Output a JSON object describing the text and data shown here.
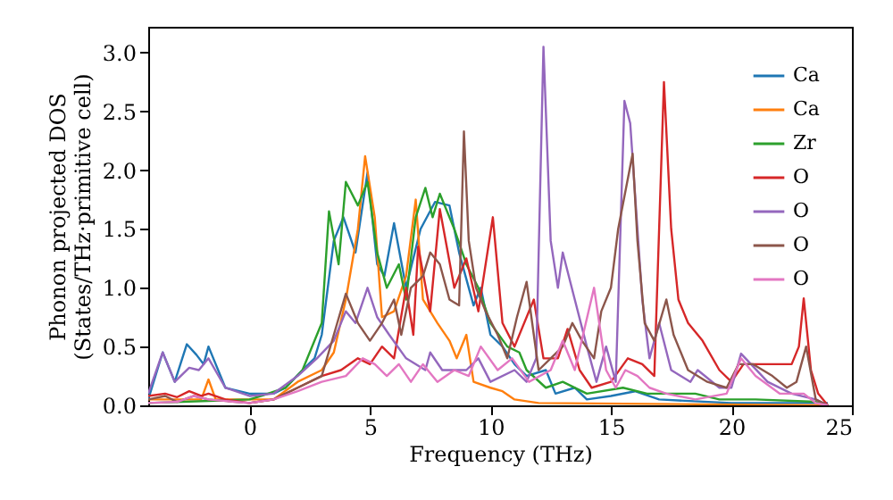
{
  "chart_data": {
    "type": "line",
    "xlabel": "Frequency (THz)",
    "ylabel": "Phonon projected DOS\n(States/THz·primitive cell)",
    "xlim": [
      -4.2,
      25
    ],
    "ylim": [
      0,
      3.22
    ],
    "xticks": [
      0,
      5,
      10,
      15,
      20,
      25
    ],
    "yticks": [
      {
        "value": 0,
        "label": "0.0"
      },
      {
        "value": 0.5,
        "label": "0.5"
      },
      {
        "value": 1,
        "label": "1.0"
      },
      {
        "value": 1.5,
        "label": "1.5"
      },
      {
        "value": 2,
        "label": "2.0"
      },
      {
        "value": 2.5,
        "label": "2.5"
      },
      {
        "value": 3,
        "label": "3.0"
      }
    ],
    "grid": false,
    "legend": "top right",
    "marker": "none",
    "line_style": "solid",
    "series": [
      {
        "name": "Ca",
        "color": "#1f77b4",
        "x": [
          -4.2,
          -3.6,
          -3.1,
          -2.6,
          -2.2,
          -1.9,
          -1.7,
          -1.0,
          0,
          1,
          1.5,
          2.2,
          2.7,
          3.0,
          3.5,
          3.9,
          4.4,
          4.9,
          5.3,
          5.6,
          6.0,
          6.5,
          7.1,
          7.7,
          8.3,
          8.7,
          9.3,
          9.6,
          10.0,
          10.5,
          11.0,
          11.5,
          12.3,
          12.7,
          13.5,
          14.0,
          15.0,
          16.0,
          17.0,
          20.0,
          24.0
        ],
        "values": [
          0.05,
          0.45,
          0.2,
          0.52,
          0.43,
          0.35,
          0.5,
          0.15,
          0.1,
          0.1,
          0.15,
          0.3,
          0.4,
          0.6,
          1.4,
          1.6,
          1.3,
          1.98,
          1.2,
          1.1,
          1.55,
          1.0,
          1.5,
          1.73,
          1.7,
          1.3,
          0.85,
          1.0,
          0.6,
          0.5,
          0.35,
          0.25,
          0.3,
          0.1,
          0.15,
          0.05,
          0.08,
          0.12,
          0.05,
          0.02,
          0.02
        ]
      },
      {
        "name": "Ca",
        "color": "#ff7f0e",
        "x": [
          -4.2,
          -2.0,
          -1.7,
          -1.4,
          0,
          1,
          2,
          3,
          3.5,
          4.0,
          4.5,
          4.8,
          5.2,
          5.5,
          6.0,
          6.5,
          6.9,
          7.2,
          7.8,
          8.3,
          8.6,
          9.0,
          9.3,
          10.0,
          10.5,
          11.0,
          12.0,
          24.0
        ],
        "values": [
          0.05,
          0.05,
          0.22,
          0.05,
          0.05,
          0.05,
          0.2,
          0.3,
          0.45,
          0.9,
          1.5,
          2.12,
          1.6,
          0.75,
          0.8,
          1.1,
          1.75,
          0.9,
          0.7,
          0.55,
          0.4,
          0.6,
          0.2,
          0.15,
          0.12,
          0.05,
          0.02,
          0.0
        ]
      },
      {
        "name": "Zr",
        "color": "#2ca02c",
        "x": [
          -4.2,
          0,
          0.5,
          1.5,
          2.2,
          3.0,
          3.3,
          3.7,
          4.0,
          4.5,
          4.9,
          5.3,
          5.7,
          6.2,
          6.5,
          6.9,
          7.3,
          7.6,
          7.9,
          8.5,
          9.0,
          9.5,
          10.0,
          10.7,
          11.2,
          11.5,
          12.3,
          13.0,
          14.0,
          15.5,
          16.5,
          17.3,
          18.5,
          19.5,
          21.0,
          23.5,
          24.0
        ],
        "values": [
          0.02,
          0.05,
          0.08,
          0.15,
          0.3,
          0.7,
          1.65,
          1.2,
          1.9,
          1.7,
          1.9,
          1.3,
          1.0,
          1.2,
          0.9,
          1.6,
          1.85,
          1.6,
          1.8,
          1.5,
          1.2,
          1.0,
          0.7,
          0.5,
          0.45,
          0.3,
          0.15,
          0.2,
          0.1,
          0.15,
          0.1,
          0.1,
          0.1,
          0.05,
          0.05,
          0.03,
          0.0
        ]
      },
      {
        "name": "O",
        "color": "#d62728",
        "x": [
          -4.2,
          -3.5,
          -3.0,
          -2.5,
          -2.0,
          -1.7,
          -1.0,
          0,
          1,
          2,
          3,
          3.8,
          4.5,
          5.0,
          5.5,
          6.0,
          6.5,
          6.8,
          7.0,
          7.5,
          7.9,
          8.5,
          9.0,
          9.5,
          10.1,
          10.5,
          11.0,
          11.8,
          12.2,
          12.8,
          13.2,
          13.7,
          14.2,
          15.0,
          15.7,
          16.3,
          16.8,
          17.0,
          17.2,
          17.5,
          17.8,
          18.2,
          18.8,
          19.5,
          20.0,
          20.5,
          21.5,
          22.5,
          22.8,
          23.0,
          23.3,
          23.6,
          24.0
        ],
        "values": [
          0.08,
          0.1,
          0.07,
          0.12,
          0.08,
          0.1,
          0.05,
          0.02,
          0.05,
          0.15,
          0.25,
          0.3,
          0.4,
          0.35,
          0.5,
          0.4,
          1.0,
          0.6,
          1.35,
          0.8,
          1.67,
          1.0,
          1.25,
          0.8,
          1.6,
          0.7,
          0.5,
          0.9,
          0.4,
          0.4,
          0.65,
          0.3,
          0.15,
          0.2,
          0.4,
          0.35,
          0.25,
          1.5,
          2.75,
          1.5,
          0.9,
          0.7,
          0.55,
          0.3,
          0.2,
          0.35,
          0.35,
          0.35,
          0.5,
          0.91,
          0.3,
          0.1,
          0.0
        ]
      },
      {
        "name": "O",
        "color": "#9467bd",
        "x": [
          -4.2,
          -3.6,
          -3.1,
          -2.5,
          -2.1,
          -1.7,
          -1.0,
          0,
          1,
          2,
          2.8,
          3.5,
          4.0,
          4.4,
          4.9,
          5.3,
          5.8,
          6.5,
          7.3,
          7.5,
          8.0,
          9.0,
          9.5,
          10.0,
          11.0,
          11.5,
          11.9,
          12.2,
          12.5,
          12.8,
          13.0,
          13.5,
          14.0,
          14.4,
          14.8,
          15.2,
          15.56,
          15.8,
          16.3,
          16.6,
          17.0,
          17.5,
          18.3,
          18.6,
          19.5,
          20.0,
          20.4,
          21.5,
          22.5,
          23.5,
          24.0
        ],
        "values": [
          0.1,
          0.45,
          0.2,
          0.32,
          0.3,
          0.4,
          0.15,
          0.08,
          0.1,
          0.25,
          0.4,
          0.55,
          0.8,
          0.7,
          1.0,
          0.75,
          0.6,
          0.4,
          0.3,
          0.45,
          0.3,
          0.3,
          0.4,
          0.2,
          0.3,
          0.2,
          0.4,
          3.05,
          1.4,
          1.0,
          1.3,
          0.9,
          0.5,
          0.2,
          0.5,
          0.2,
          2.59,
          2.4,
          0.9,
          0.4,
          0.7,
          0.3,
          0.2,
          0.3,
          0.15,
          0.15,
          0.44,
          0.2,
          0.1,
          0.05,
          0.0
        ]
      },
      {
        "name": "O",
        "color": "#8c564b",
        "x": [
          -4.2,
          -3.5,
          -3.0,
          -2.3,
          -1.7,
          0,
          1,
          2,
          3,
          3.5,
          4.0,
          4.5,
          5.0,
          5.5,
          6.0,
          6.3,
          6.7,
          7.2,
          7.5,
          7.9,
          8.3,
          8.7,
          8.9,
          9.1,
          9.4,
          9.8,
          10.3,
          10.7,
          11.1,
          11.5,
          12.0,
          12.5,
          13.0,
          13.4,
          13.8,
          14.3,
          14.6,
          15.0,
          15.3,
          15.9,
          16.1,
          16.4,
          16.8,
          17.3,
          17.6,
          18.2,
          19.0,
          19.8,
          20.3,
          20.9,
          21.7,
          22.3,
          22.7,
          23.1,
          23.5,
          24.0
        ],
        "values": [
          0.05,
          0.08,
          0.03,
          0.08,
          0.05,
          0.02,
          0.05,
          0.15,
          0.25,
          0.6,
          0.95,
          0.7,
          0.55,
          0.7,
          0.9,
          0.6,
          1.0,
          1.1,
          1.3,
          1.2,
          0.9,
          0.85,
          2.33,
          1.4,
          1.0,
          0.8,
          0.6,
          0.4,
          0.75,
          1.05,
          0.3,
          0.4,
          0.5,
          0.7,
          0.55,
          0.4,
          0.8,
          1.0,
          1.5,
          2.14,
          1.4,
          0.7,
          0.55,
          0.9,
          0.6,
          0.3,
          0.2,
          0.15,
          0.35,
          0.35,
          0.25,
          0.15,
          0.2,
          0.5,
          0.05,
          0.0
        ]
      },
      {
        "name": "O",
        "color": "#e377c2",
        "x": [
          -4.2,
          -3.0,
          -2.3,
          -1.7,
          0,
          1,
          2,
          3,
          4,
          4.7,
          5.2,
          5.7,
          6.2,
          6.7,
          7.2,
          7.8,
          8.5,
          9.1,
          9.6,
          10.3,
          10.9,
          11.6,
          12.5,
          13.0,
          13.5,
          14.3,
          14.8,
          15.2,
          15.6,
          16.1,
          16.6,
          17.3,
          18.5,
          19.8,
          20.4,
          21.0,
          22.0,
          23.0,
          23.5,
          24.0
        ],
        "values": [
          0.02,
          0.03,
          0.08,
          0.05,
          0.02,
          0.05,
          0.12,
          0.2,
          0.25,
          0.4,
          0.35,
          0.25,
          0.35,
          0.2,
          0.35,
          0.2,
          0.3,
          0.25,
          0.5,
          0.3,
          0.4,
          0.2,
          0.3,
          0.55,
          0.3,
          1.0,
          0.3,
          0.15,
          0.3,
          0.25,
          0.15,
          0.1,
          0.05,
          0.1,
          0.4,
          0.25,
          0.1,
          0.1,
          0.02,
          0.0
        ]
      }
    ]
  }
}
